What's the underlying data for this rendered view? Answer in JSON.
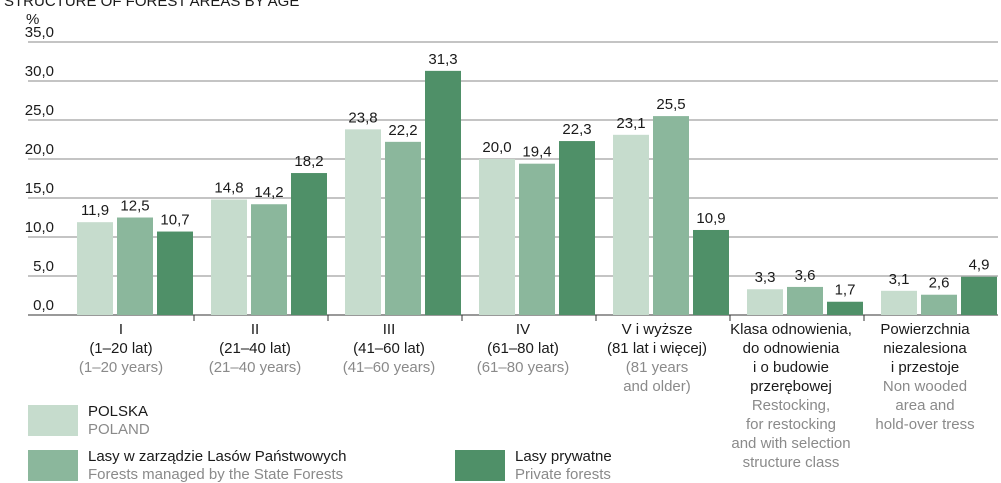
{
  "chart_data": {
    "type": "bar",
    "title": "STRUCTURE OF FOREST AREAS BY AGE",
    "y_label": "%",
    "categories": [
      {
        "pl": [
          "I",
          "(1–20 lat)"
        ],
        "en": [
          "(1–20 years)"
        ]
      },
      {
        "pl": [
          "II",
          "(21–40 lat)"
        ],
        "en": [
          "(21–40 years)"
        ]
      },
      {
        "pl": [
          "III",
          "(41–60 lat)"
        ],
        "en": [
          "(41–60 years)"
        ]
      },
      {
        "pl": [
          "IV",
          "(61–80 lat)"
        ],
        "en": [
          "(61–80 years)"
        ]
      },
      {
        "pl": [
          "V i wyższe",
          "(81 lat i więcej)"
        ],
        "en": [
          "(81 years",
          "and older)"
        ]
      },
      {
        "pl": [
          "Klasa odnowienia,",
          "do odnowienia",
          "i o budowie",
          "przerębowej"
        ],
        "en": [
          "Restocking,",
          "for restocking",
          "and with selection",
          "structure class"
        ]
      },
      {
        "pl": [
          "Powierzchnia",
          "niezalesiona",
          "i przestoje"
        ],
        "en": [
          "Non wooded",
          "area  and",
          "hold-over tress"
        ]
      }
    ],
    "series": [
      {
        "name": "POLSKA",
        "name_en": "POLAND",
        "color": "#c6dccd",
        "values": [
          11.9,
          14.8,
          23.8,
          20.0,
          23.1,
          3.3,
          3.1
        ],
        "value_labels": [
          "11,9",
          "14,8",
          "23,8",
          "20,0",
          "23,1",
          "3,3",
          "3,1"
        ]
      },
      {
        "name": "Lasy w zarządzie Lasów Państwowych",
        "name_en": "Forests managed by the State Forests",
        "color": "#8bb79c",
        "values": [
          12.5,
          14.2,
          22.2,
          19.4,
          25.5,
          3.6,
          2.6
        ],
        "value_labels": [
          "12,5",
          "14,2",
          "22,2",
          "19,4",
          "25,5",
          "3,6",
          "2,6"
        ]
      },
      {
        "name": "Lasy prywatne",
        "name_en": "Private forests",
        "color": "#4f9068",
        "values": [
          10.7,
          18.2,
          31.3,
          22.3,
          10.9,
          1.7,
          4.9
        ],
        "value_labels": [
          "10,7",
          "18,2",
          "31,3",
          "22,3",
          "10,9",
          "1,7",
          "4,9"
        ]
      }
    ],
    "ylim": [
      0,
      35
    ],
    "yticks": [
      {
        "value": 0,
        "label": "0,0"
      },
      {
        "value": 5,
        "label": "5,0"
      },
      {
        "value": 10,
        "label": "10,0"
      },
      {
        "value": 15,
        "label": "15,0"
      },
      {
        "value": 20,
        "label": "20,0"
      },
      {
        "value": 25,
        "label": "25,0"
      },
      {
        "value": 30,
        "label": "30,0"
      },
      {
        "value": 35,
        "label": "35,0"
      }
    ],
    "grid": true
  }
}
